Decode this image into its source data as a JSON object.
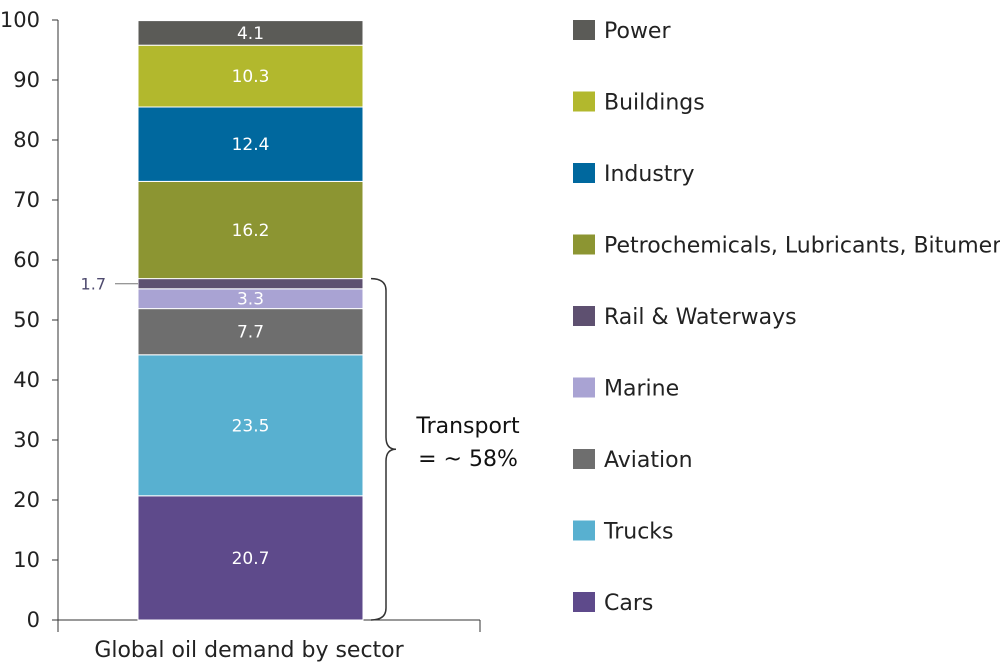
{
  "chart_data": {
    "type": "bar",
    "stacked": true,
    "categories": [
      "Global oil demand by sector"
    ],
    "xlabel": "Global oil demand by sector",
    "ylim": [
      0,
      100
    ],
    "yticks": [
      0,
      10,
      20,
      30,
      40,
      50,
      60,
      70,
      80,
      90,
      100
    ],
    "series": [
      {
        "name": "Cars",
        "values": [
          20.7
        ],
        "color": "#5e4a8b",
        "label": "20.7"
      },
      {
        "name": "Trucks",
        "values": [
          23.5
        ],
        "color": "#58b0d0",
        "label": "23.5"
      },
      {
        "name": "Aviation",
        "values": [
          7.7
        ],
        "color": "#6e6e6e",
        "label": "7.7"
      },
      {
        "name": "Marine",
        "values": [
          3.3
        ],
        "color": "#a9a3d3",
        "label": "3.3"
      },
      {
        "name": "Rail & Waterways",
        "values": [
          1.7
        ],
        "color": "#5e5070",
        "label": "1.7"
      },
      {
        "name": "Petrochemicals, Lubricants, Bitumen",
        "values": [
          16.2
        ],
        "color": "#8c9532",
        "label": "16.2"
      },
      {
        "name": "Industry",
        "values": [
          12.4
        ],
        "color": "#00689e",
        "label": "12.4"
      },
      {
        "name": "Buildings",
        "values": [
          10.3
        ],
        "color": "#b2b82d",
        "label": "10.3"
      },
      {
        "name": "Power",
        "values": [
          4.1
        ],
        "color": "#5b5b57",
        "label": "4.1"
      }
    ],
    "legend": {
      "placement": "right",
      "order": [
        "Power",
        "Buildings",
        "Industry",
        "Petrochemicals, Lubricants, Bitumen",
        "Rail & Waterways",
        "Marine",
        "Aviation",
        "Trucks",
        "Cars"
      ]
    },
    "annotations": {
      "bracket_line1": "Transport",
      "bracket_line2": "= ~ 58%"
    },
    "grid": false
  }
}
